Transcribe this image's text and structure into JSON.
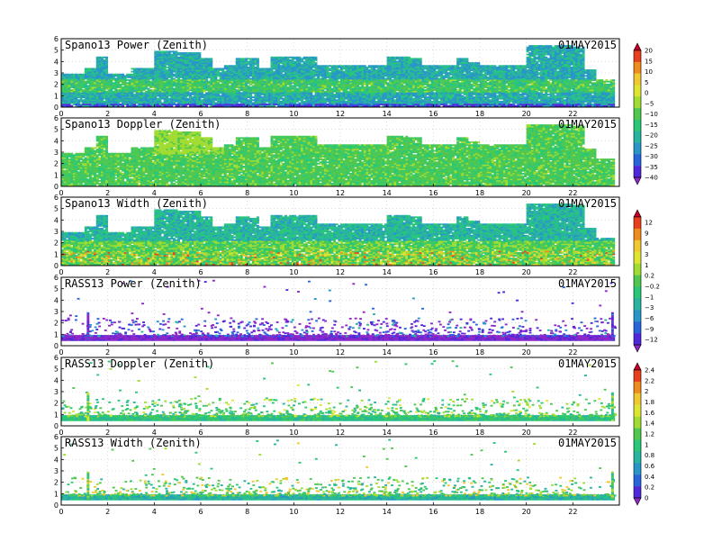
{
  "figure": {
    "panels": [
      {
        "title": "Spano13 Power (Zenith)",
        "date": "01MAY2015",
        "kind": "wind",
        "cmap": "power",
        "seed": 11
      },
      {
        "title": "Spano13 Doppler (Zenith)",
        "date": "01MAY2015",
        "kind": "wind",
        "cmap": "doppler",
        "seed": 23
      },
      {
        "title": "Spano13 Width (Zenith)",
        "date": "01MAY2015",
        "kind": "wind",
        "cmap": "width",
        "seed": 37
      },
      {
        "title": "RASS13 Power (Zenith)",
        "date": "01MAY2015",
        "kind": "rass",
        "cmap": "rasspower",
        "seed": 41
      },
      {
        "title": "RASS13 Doppler (Zenith)",
        "date": "01MAY2015",
        "kind": "rass",
        "cmap": "rassdoppler",
        "seed": 53
      },
      {
        "title": "RASS13 Width (Zenith)",
        "date": "01MAY2015",
        "kind": "rass",
        "cmap": "rasswidth",
        "seed": 67
      }
    ],
    "colorbars": [
      {
        "name": "power-doppler",
        "ticks": [
          "20",
          "15",
          "10",
          "5",
          "0",
          "−5",
          "−10",
          "−15",
          "−20",
          "−25",
          "−30",
          "−35",
          "−40"
        ],
        "colors": [
          "#c80028",
          "#e8401e",
          "#f08c1e",
          "#f0c832",
          "#dce632",
          "#a0dc32",
          "#50c850",
          "#28c878",
          "#28b4a0",
          "#2896c8",
          "#2864dc",
          "#5028dc",
          "#8c28c8"
        ]
      },
      {
        "name": "width-rasspower",
        "ticks": [
          "12",
          "9",
          "6",
          "3",
          "1",
          "0.2",
          "−0.2",
          "−1",
          "−3",
          "−6",
          "−9",
          "−12"
        ],
        "colors": [
          "#c80028",
          "#e8401e",
          "#f08c1e",
          "#f0c832",
          "#dce632",
          "#a0dc32",
          "#50c850",
          "#28c878",
          "#28b4a0",
          "#2896c8",
          "#2864dc",
          "#5028dc",
          "#8c28c8"
        ]
      },
      {
        "name": "rass-doppler-width",
        "ticks": [
          "2.4",
          "2.2",
          "2",
          "1.8",
          "1.6",
          "1.4",
          "1.2",
          "1",
          "0.8",
          "0.6",
          "0.4",
          "0.2",
          "0"
        ],
        "colors": [
          "#c80028",
          "#e8401e",
          "#f08c1e",
          "#f0c832",
          "#dce632",
          "#a0dc32",
          "#50c850",
          "#28c878",
          "#28b4a0",
          "#2896c8",
          "#2864dc",
          "#5028dc",
          "#8c28c8"
        ]
      }
    ]
  },
  "chart_data": {
    "type": "heatmap",
    "x": {
      "min": 0,
      "max": 24,
      "ticks": [
        0,
        2,
        4,
        6,
        8,
        10,
        12,
        14,
        16,
        18,
        20,
        22
      ]
    },
    "y": {
      "min": 0,
      "max": 6,
      "ticks": [
        0,
        1,
        2,
        3,
        4,
        5,
        6
      ]
    },
    "grid": true,
    "top_profile_km": [
      [
        0,
        3.0
      ],
      [
        1,
        3.5
      ],
      [
        1.5,
        4.5
      ],
      [
        2,
        3.0
      ],
      [
        2.5,
        3.0
      ],
      [
        3,
        3.5
      ],
      [
        3.5,
        3.5
      ],
      [
        4,
        5.0
      ],
      [
        5,
        4.8
      ],
      [
        6,
        4.3
      ],
      [
        6.5,
        3.5
      ],
      [
        7,
        3.7
      ],
      [
        7.5,
        4.3
      ],
      [
        8,
        4.3
      ],
      [
        8.5,
        3.5
      ],
      [
        9,
        4.5
      ],
      [
        10,
        4.5
      ],
      [
        11,
        3.7
      ],
      [
        12,
        3.7
      ],
      [
        13,
        3.7
      ],
      [
        14,
        4.5
      ],
      [
        15,
        4.3
      ],
      [
        15.5,
        3.7
      ],
      [
        16,
        3.7
      ],
      [
        17,
        4.3
      ],
      [
        17.5,
        3.9
      ],
      [
        18,
        3.7
      ],
      [
        19,
        3.7
      ],
      [
        19.5,
        3.7
      ],
      [
        20,
        5.5
      ],
      [
        21.5,
        5.4
      ],
      [
        22,
        5.3
      ],
      [
        22.5,
        3.3
      ],
      [
        23,
        2.5
      ],
      [
        23.8,
        2.5
      ]
    ]
  }
}
